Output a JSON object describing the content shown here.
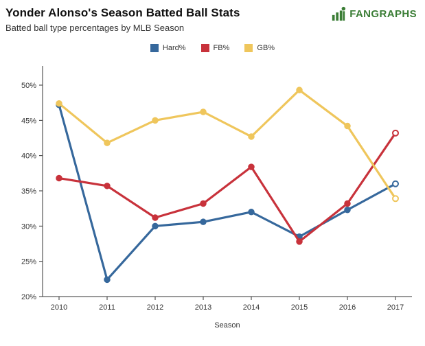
{
  "header": {
    "title": "Yonder Alonso's Season Batted Ball Stats",
    "subtitle": "Batted ball type percentages by MLB Season",
    "logo_text": "FANGRAPHS",
    "logo_color": "#3a7d35"
  },
  "chart_data": {
    "type": "line",
    "x": [
      2010,
      2011,
      2012,
      2013,
      2014,
      2015,
      2016,
      2017
    ],
    "series": [
      {
        "name": "Hard%",
        "color": "#36689c",
        "values": [
          47.2,
          22.4,
          30.0,
          30.6,
          32.0,
          28.5,
          32.3,
          36.0
        ]
      },
      {
        "name": "FB%",
        "color": "#c8323b",
        "values": [
          36.8,
          35.7,
          31.2,
          33.2,
          38.4,
          27.8,
          33.2,
          43.2
        ]
      },
      {
        "name": "GB%",
        "color": "#efc65c",
        "values": [
          47.4,
          41.8,
          45.0,
          46.2,
          42.7,
          49.3,
          44.2,
          33.9
        ]
      }
    ],
    "title": "Yonder Alonso's Season Batted Ball Stats",
    "subtitle": "Batted ball type percentages by MLB Season",
    "xlabel": "Season",
    "ylabel": "",
    "ylim": [
      20,
      50
    ],
    "yticks": [
      20,
      25,
      30,
      35,
      40,
      45,
      50
    ],
    "ytick_format": "%",
    "grid": false,
    "legend_position": "top",
    "last_point_open": true
  }
}
